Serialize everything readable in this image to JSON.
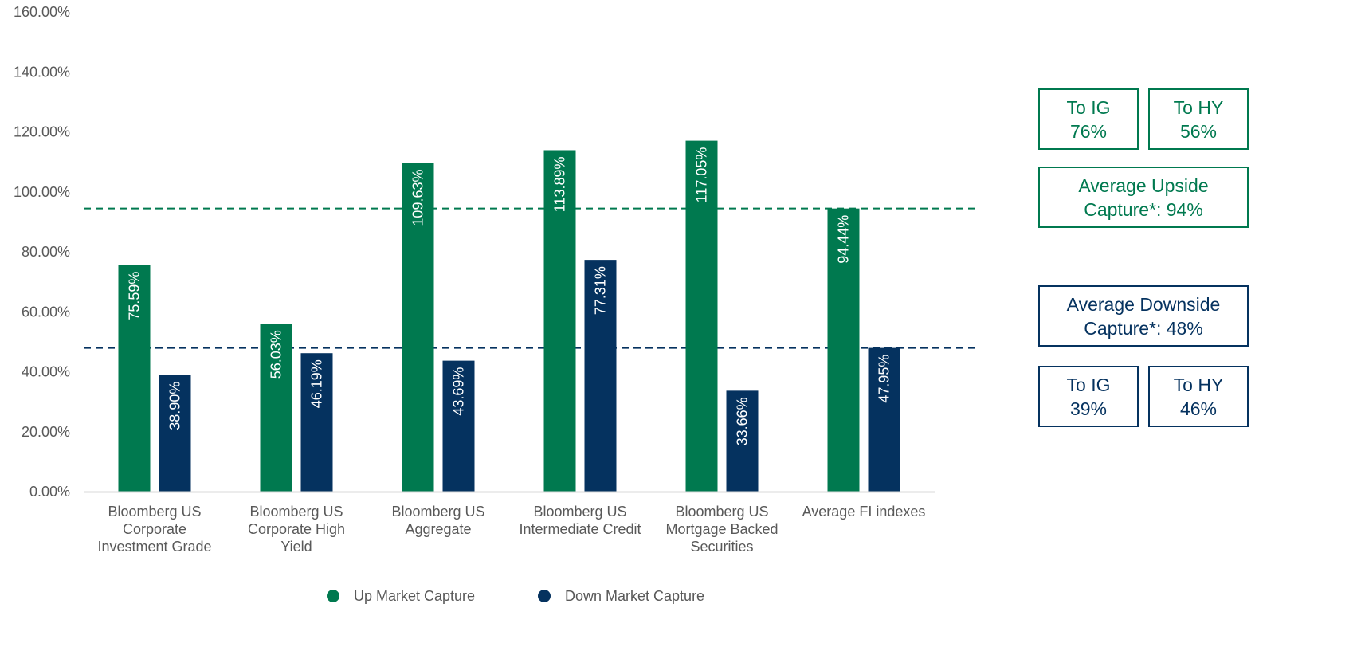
{
  "chart_data": {
    "type": "bar",
    "categories": [
      [
        "Bloomberg US",
        "Corporate",
        "Investment Grade"
      ],
      [
        "Bloomberg US",
        "Corporate High",
        "Yield"
      ],
      [
        "Bloomberg US",
        "Aggregate"
      ],
      [
        "Bloomberg US",
        "Intermediate Credit"
      ],
      [
        "Bloomberg US",
        "Mortgage Backed",
        "Securities"
      ],
      [
        "Average FI indexes"
      ]
    ],
    "series": [
      {
        "name": "Up Market Capture",
        "color": "#00794f",
        "values": [
          75.59,
          56.03,
          109.63,
          113.89,
          117.05,
          94.44
        ],
        "labels": [
          "75.59%",
          "56.03%",
          "109.63%",
          "113.89%",
          "117.05%",
          "94.44%"
        ]
      },
      {
        "name": "Down Market Capture",
        "color": "#05325f",
        "values": [
          38.9,
          46.19,
          43.69,
          77.31,
          33.66,
          47.95
        ],
        "labels": [
          "38.90%",
          "46.19%",
          "43.69%",
          "77.31%",
          "33.66%",
          "47.95%"
        ]
      }
    ],
    "yticks": [
      "0.00%",
      "20.00%",
      "40.00%",
      "60.00%",
      "80.00%",
      "100.00%",
      "120.00%",
      "140.00%",
      "160.00%"
    ],
    "ylim": [
      0,
      160
    ],
    "reference_lines": [
      {
        "value": 94.44,
        "color": "#00794f",
        "style": "dashed"
      },
      {
        "value": 47.95,
        "color": "#05325f",
        "style": "dashed"
      }
    ],
    "legend_position": "bottom-center",
    "grid": false
  },
  "callouts": {
    "upside_ig": {
      "line1": "To IG",
      "line2": "76%"
    },
    "upside_hy": {
      "line1": "To HY",
      "line2": "56%"
    },
    "upside_avg": {
      "line1": "Average Upside",
      "line2": "Capture*: 94%"
    },
    "downside_avg": {
      "line1": "Average Downside",
      "line2": "Capture*: 48%"
    },
    "downside_ig": {
      "line1": "To IG",
      "line2": "39%"
    },
    "downside_hy": {
      "line1": "To HY",
      "line2": "46%"
    }
  }
}
